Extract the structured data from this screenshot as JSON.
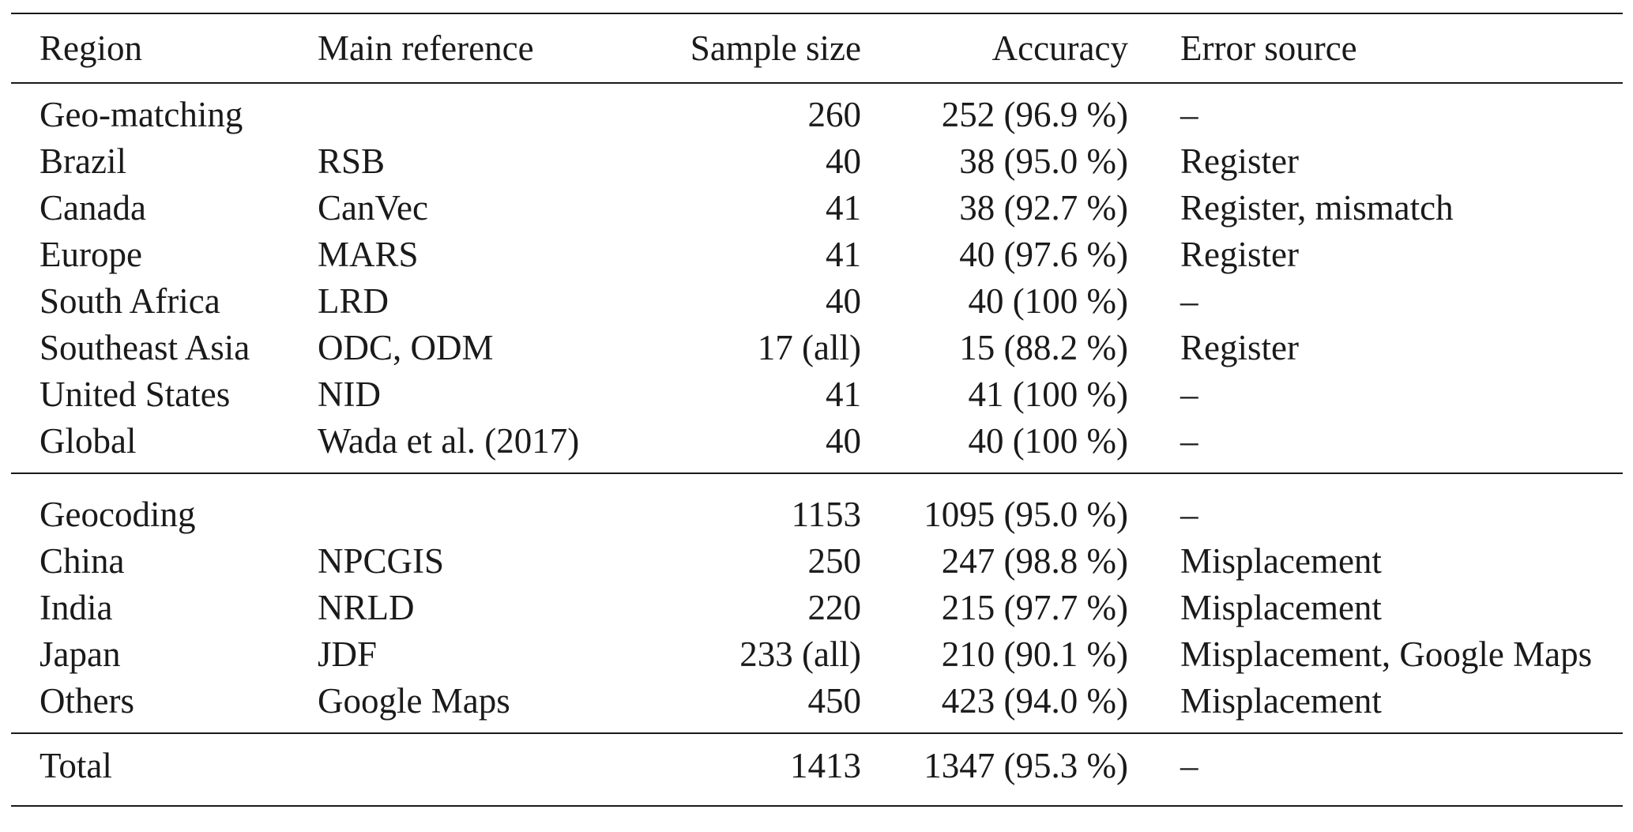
{
  "header": {
    "region": "Region",
    "main_reference": "Main reference",
    "sample_size": "Sample size",
    "accuracy": "Accuracy",
    "error_source": "Error source"
  },
  "groups": [
    {
      "rows": [
        {
          "region": "Geo-matching",
          "reference": "",
          "sample_size": "260",
          "accuracy": "252 (96.9 %)",
          "error_source": "–"
        },
        {
          "region": "Brazil",
          "reference": "RSB",
          "sample_size": "40",
          "accuracy": "38 (95.0 %)",
          "error_source": "Register"
        },
        {
          "region": "Canada",
          "reference": "CanVec",
          "sample_size": "41",
          "accuracy": "38 (92.7 %)",
          "error_source": "Register, mismatch"
        },
        {
          "region": "Europe",
          "reference": "MARS",
          "sample_size": "41",
          "accuracy": "40 (97.6 %)",
          "error_source": "Register"
        },
        {
          "region": "South Africa",
          "reference": "LRD",
          "sample_size": "40",
          "accuracy": "40 (100 %)",
          "error_source": "–"
        },
        {
          "region": "Southeast Asia",
          "reference": "ODC, ODM",
          "sample_size": "17 (all)",
          "accuracy": "15 (88.2 %)",
          "error_source": "Register"
        },
        {
          "region": "United States",
          "reference": "NID",
          "sample_size": "41",
          "accuracy": "41 (100 %)",
          "error_source": "–"
        },
        {
          "region": "Global",
          "reference": "Wada et al. (2017)",
          "sample_size": "40",
          "accuracy": "40 (100 %)",
          "error_source": "–"
        }
      ]
    },
    {
      "rows": [
        {
          "region": "Geocoding",
          "reference": "",
          "sample_size": "1153",
          "accuracy": "1095 (95.0 %)",
          "error_source": "–"
        },
        {
          "region": "China",
          "reference": "NPCGIS",
          "sample_size": "250",
          "accuracy": "247 (98.8 %)",
          "error_source": "Misplacement"
        },
        {
          "region": "India",
          "reference": "NRLD",
          "sample_size": "220",
          "accuracy": "215 (97.7 %)",
          "error_source": "Misplacement"
        },
        {
          "region": "Japan",
          "reference": "JDF",
          "sample_size": "233 (all)",
          "accuracy": "210 (90.1 %)",
          "error_source": "Misplacement, Google Maps"
        },
        {
          "region": "Others",
          "reference": "Google Maps",
          "sample_size": "450",
          "accuracy": "423 (94.0 %)",
          "error_source": "Misplacement"
        }
      ]
    }
  ],
  "total": {
    "region": "Total",
    "reference": "",
    "sample_size": "1413",
    "accuracy": "1347 (95.3 %)",
    "error_source": "–"
  }
}
